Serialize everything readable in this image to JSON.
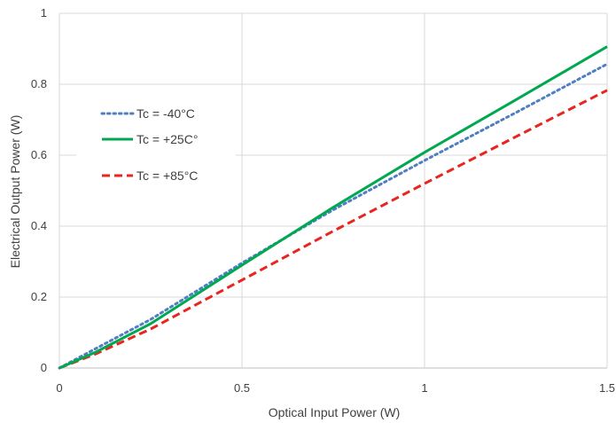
{
  "chart_data": {
    "type": "line",
    "xlabel": "Optical Input Power (W)",
    "ylabel": "Electrical Output Power (W)",
    "xlim": [
      0,
      1.5
    ],
    "ylim": [
      0,
      1
    ],
    "x_ticks": [
      "0",
      "0.5",
      "1",
      "1.5"
    ],
    "y_ticks": [
      "0",
      "0.2",
      "0.4",
      "0.6",
      "0.8",
      "1"
    ],
    "grid": true,
    "legend_position": "top-left",
    "series": [
      {
        "name": "Tc = -40°C",
        "color": "#4f7fc0",
        "style": "dotted",
        "x": [
          0,
          0.1,
          0.25,
          0.5,
          0.75,
          1.0,
          1.25,
          1.5
        ],
        "y": [
          0,
          0.055,
          0.137,
          0.296,
          0.446,
          0.585,
          0.72,
          0.857
        ]
      },
      {
        "name": "Tc = +25C°",
        "color": "#00a84f",
        "style": "solid",
        "x": [
          0,
          0.1,
          0.25,
          0.5,
          0.75,
          1.0,
          1.25,
          1.5
        ],
        "y": [
          0,
          0.045,
          0.125,
          0.29,
          0.453,
          0.608,
          0.756,
          0.906
        ]
      },
      {
        "name": "Tc = +85°C",
        "color": "#e8251f",
        "style": "dashed",
        "x": [
          0,
          0.1,
          0.25,
          0.5,
          0.75,
          1.0,
          1.25,
          1.5
        ],
        "y": [
          0,
          0.04,
          0.11,
          0.248,
          0.386,
          0.52,
          0.652,
          0.783
        ]
      }
    ]
  }
}
